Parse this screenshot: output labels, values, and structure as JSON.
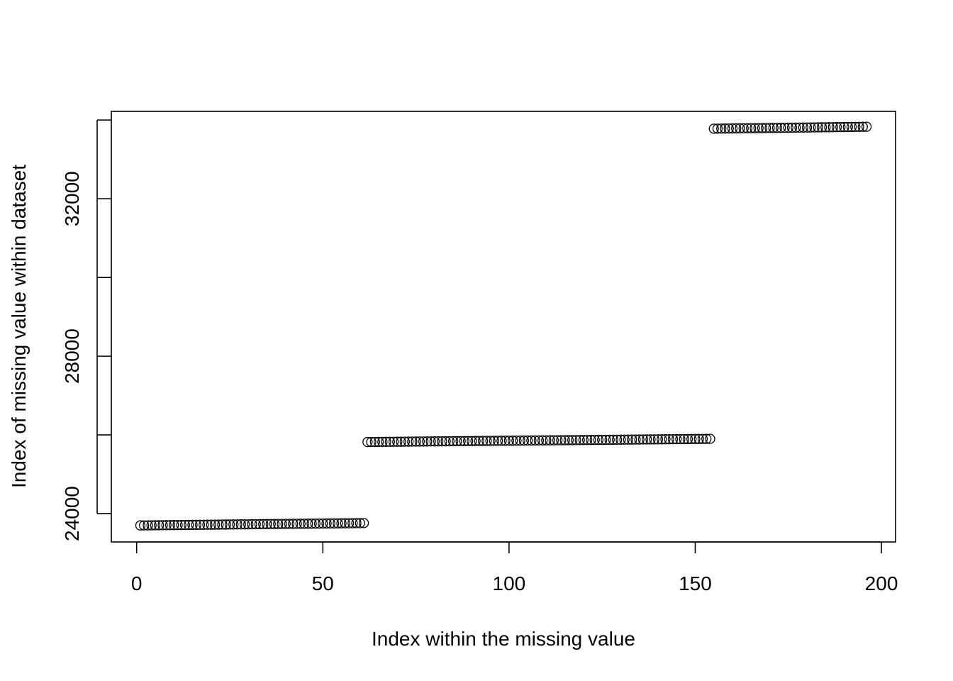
{
  "chart_data": {
    "type": "scatter",
    "title": "",
    "xlabel": "Index within the missing value",
    "ylabel": "Index of missing value within dataset",
    "xlim": [
      -6.8,
      203.8
    ],
    "ylim": [
      23280,
      34220
    ],
    "x_ticks": [
      0,
      50,
      100,
      150,
      200
    ],
    "x_tick_labels": [
      "0",
      "50",
      "100",
      "150",
      "200"
    ],
    "y_ticks": [
      24000,
      26000,
      28000,
      30000,
      32000,
      34000
    ],
    "y_tick_labels": [
      "24000",
      "",
      "28000",
      "",
      "32000",
      ""
    ],
    "grid": false,
    "legend": "none",
    "marker": "open-circle",
    "segments": [
      {
        "x_start": 1,
        "x_end": 61,
        "y_start": 23700,
        "y_end": 23760
      },
      {
        "x_start": 62,
        "x_end": 154,
        "y_start": 25820,
        "y_end": 25900
      },
      {
        "x_start": 155,
        "x_end": 196,
        "y_start": 33780,
        "y_end": 33830
      }
    ]
  }
}
